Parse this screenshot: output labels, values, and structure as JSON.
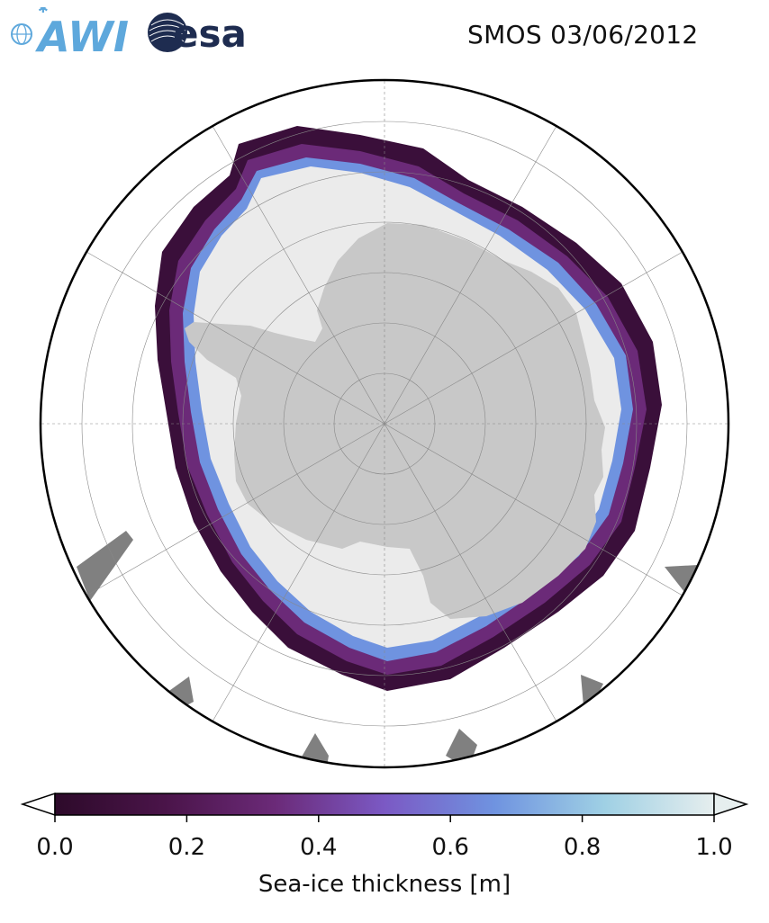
{
  "header": {
    "logos": [
      "AWI",
      "esa"
    ],
    "title": "SMOS 03/06/2012"
  },
  "map": {
    "projection": "south-polar-stereographic",
    "land_color": "#c8c8c8",
    "ice_pack_color": "#ebebeb",
    "other_land_color": "#808080",
    "ocean_color": "#ffffff",
    "graticule": true
  },
  "colorbar": {
    "label": "Sea-ice thickness [m]",
    "ticks": [
      "0.0",
      "0.2",
      "0.4",
      "0.6",
      "0.8",
      "1.0"
    ],
    "range": [
      0.0,
      1.0
    ],
    "extend": "both",
    "colormap_stops": [
      "#2d0a2a",
      "#4a1449",
      "#6b2a78",
      "#7b59c4",
      "#6f93e0",
      "#9fd0e4",
      "#e6eeee"
    ]
  }
}
